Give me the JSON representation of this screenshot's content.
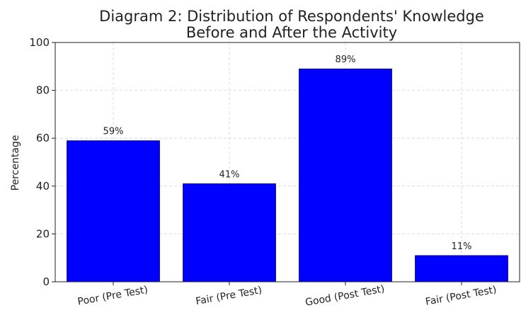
{
  "chart_data": {
    "type": "bar",
    "title": [
      "Diagram 2: Distribution of Respondents' Knowledge",
      "Before and After the Activity"
    ],
    "xlabel": "",
    "ylabel": "Percentage",
    "categories": [
      "Poor (Pre Test)",
      "Fair (Pre Test)",
      "Good (Post Test)",
      "Fair (Post Test)"
    ],
    "values": [
      59,
      41,
      89,
      11
    ],
    "data_labels": [
      "59%",
      "41%",
      "89%",
      "11%"
    ],
    "ylim": [
      0,
      100
    ],
    "yticks": [
      "0",
      "20",
      "40",
      "60",
      "80",
      "100"
    ],
    "grid": true,
    "bar_color": "#0000ff",
    "grid_color": "#d3d3d3"
  }
}
